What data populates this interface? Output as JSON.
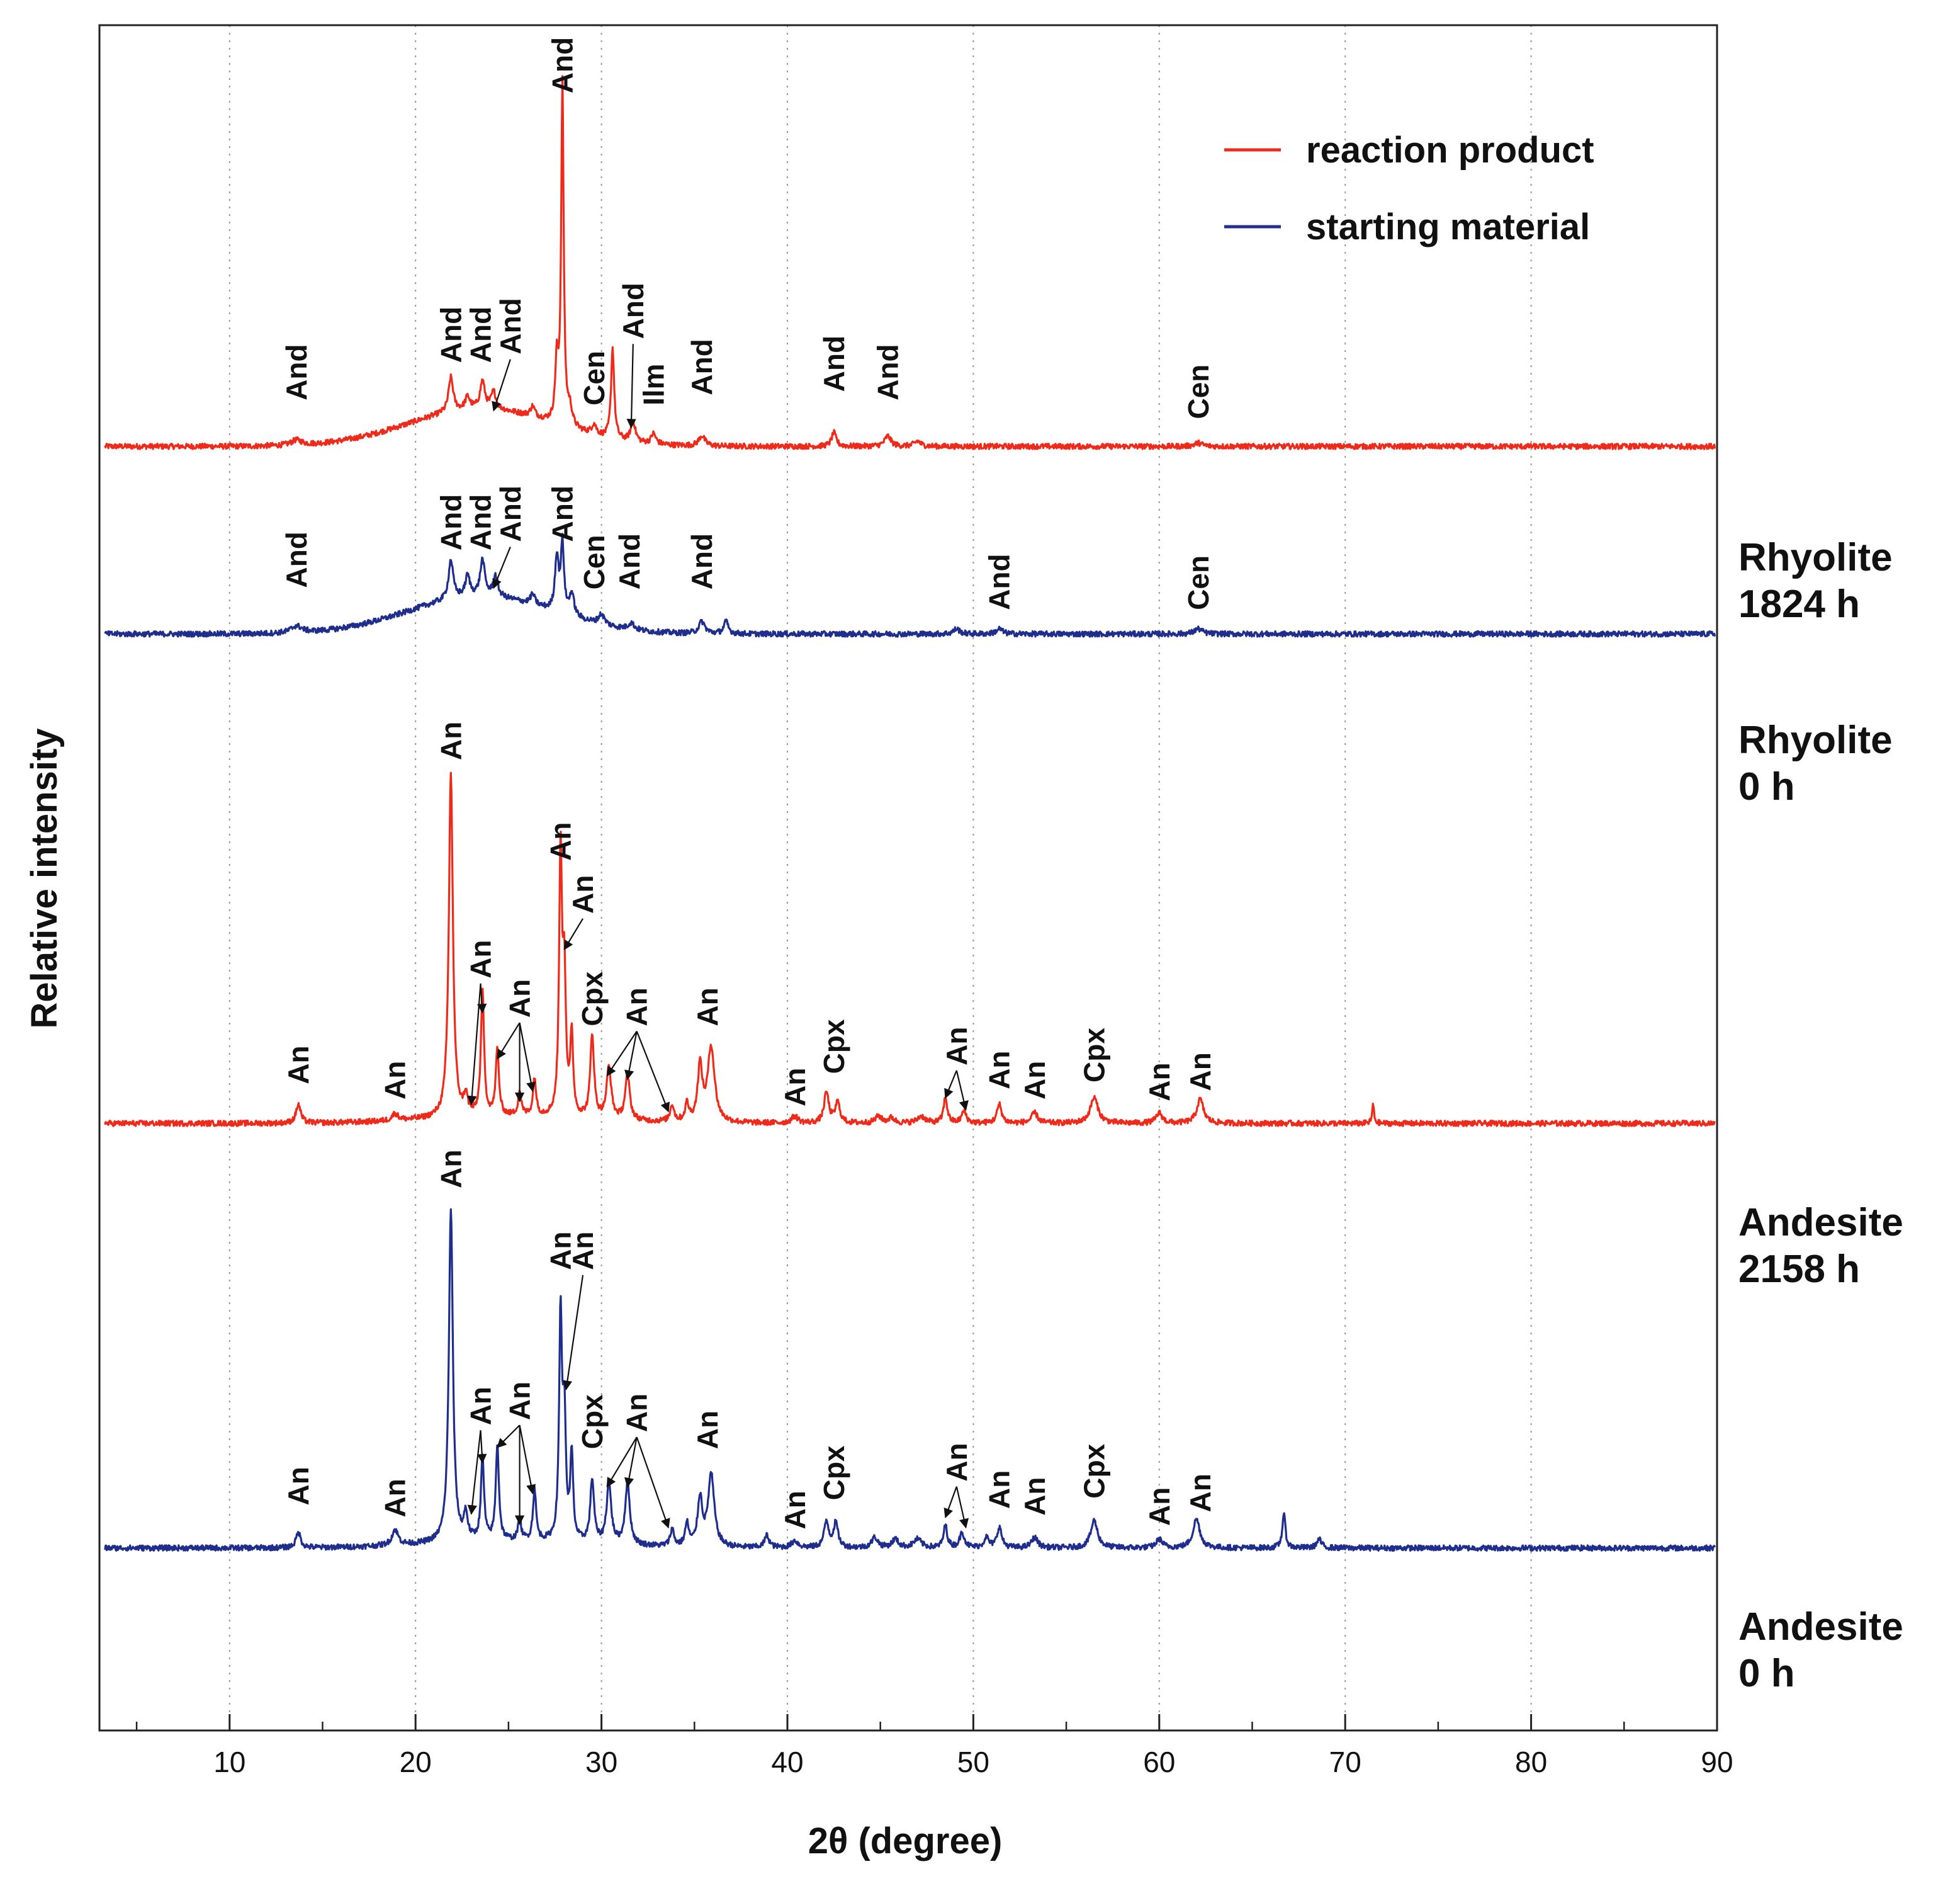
{
  "chart_data": {
    "type": "line",
    "title": "",
    "xlabel": "2θ (degree)",
    "ylabel": "Relative intensity",
    "xlim": [
      3,
      90
    ],
    "ylim": [
      0,
      100
    ],
    "xticks": [
      10,
      20,
      30,
      40,
      50,
      60,
      70,
      80,
      90
    ],
    "xtick_labels": [
      "10",
      "20",
      "30",
      "40",
      "50",
      "60",
      "70",
      "80",
      "90"
    ],
    "x_minor_step": 5,
    "grid": "vertical dotted",
    "legend": {
      "position": "top-right",
      "entries": [
        {
          "label": "reaction product",
          "color": "#ee2a1b"
        },
        {
          "label": "starting material",
          "color": "#1f2d8c"
        }
      ]
    },
    "series": [
      {
        "name": "Rhyolite 1824 h",
        "label_line1": "Rhyolite",
        "label_line2": "1824 h",
        "kind": "reaction product",
        "color": "#ee2a1b",
        "baseline": 75.3,
        "hump": {
          "center": 23.5,
          "width": 5.5,
          "height": 2.2
        },
        "peaks": [
          [
            13.6,
            0.3,
            0.35
          ],
          [
            21.9,
            2.0,
            0.15
          ],
          [
            22.8,
            0.7,
            0.15
          ],
          [
            23.6,
            1.6,
            0.15
          ],
          [
            24.2,
            1.0,
            0.15
          ],
          [
            26.3,
            0.6,
            0.15
          ],
          [
            27.6,
            3.5,
            0.1
          ],
          [
            27.9,
            20.0,
            0.08
          ],
          [
            28.3,
            1.0,
            0.15
          ],
          [
            29.6,
            0.6,
            0.15
          ],
          [
            30.6,
            5.3,
            0.1
          ],
          [
            31.7,
            1.2,
            0.15
          ],
          [
            32.8,
            0.6,
            0.15
          ],
          [
            35.4,
            0.6,
            0.2
          ],
          [
            42.5,
            0.8,
            0.15
          ],
          [
            45.4,
            0.6,
            0.2
          ],
          [
            47.0,
            0.3,
            0.2
          ],
          [
            62.1,
            0.2,
            0.25
          ]
        ],
        "labels": [
          {
            "text": "And",
            "x": 13.6,
            "y": 78.0,
            "arrow": null
          },
          {
            "text": "And",
            "x": 21.9,
            "y": 80.2,
            "arrow": null
          },
          {
            "text": "And",
            "x": 23.5,
            "y": 80.2,
            "arrow": null
          },
          {
            "text": "And",
            "x": 25.1,
            "y": 80.7,
            "arrow": [
              24.2,
              77.4
            ]
          },
          {
            "text": "And",
            "x": 27.9,
            "y": 96.0,
            "arrow": null
          },
          {
            "text": "Cen",
            "x": 29.6,
            "y": 77.7,
            "arrow": null
          },
          {
            "text": "And",
            "x": 31.7,
            "y": 81.6,
            "arrow": [
              31.6,
              76.4
            ]
          },
          {
            "text": "Ilm",
            "x": 32.8,
            "y": 77.7,
            "arrow": null
          },
          {
            "text": "And",
            "x": 35.4,
            "y": 78.3,
            "arrow": null
          },
          {
            "text": "And",
            "x": 42.5,
            "y": 78.5,
            "arrow": null
          },
          {
            "text": "And",
            "x": 45.4,
            "y": 78.0,
            "arrow": null
          },
          {
            "text": "Cen",
            "x": 62.1,
            "y": 76.9,
            "arrow": null
          }
        ]
      },
      {
        "name": "Rhyolite 0 h",
        "label_line1": "Rhyolite",
        "label_line2": "0 h",
        "kind": "starting material",
        "color": "#1f2d8c",
        "baseline": 64.3,
        "hump": {
          "center": 23.5,
          "width": 5.5,
          "height": 2.2
        },
        "peaks": [
          [
            13.6,
            0.4,
            0.35
          ],
          [
            21.9,
            2.3,
            0.15
          ],
          [
            22.8,
            1.2,
            0.15
          ],
          [
            23.6,
            2.1,
            0.15
          ],
          [
            24.3,
            1.2,
            0.15
          ],
          [
            26.3,
            0.6,
            0.15
          ],
          [
            27.6,
            3.2,
            0.12
          ],
          [
            27.9,
            4.0,
            0.1
          ],
          [
            28.4,
            1.3,
            0.15
          ],
          [
            30.0,
            0.6,
            0.2
          ],
          [
            31.6,
            0.4,
            0.2
          ],
          [
            35.4,
            0.7,
            0.2
          ],
          [
            36.7,
            0.7,
            0.15
          ],
          [
            49.1,
            0.3,
            0.2
          ],
          [
            51.4,
            0.3,
            0.2
          ],
          [
            62.1,
            0.3,
            0.25
          ]
        ],
        "labels": [
          {
            "text": "And",
            "x": 13.6,
            "y": 67.0,
            "arrow": null
          },
          {
            "text": "And",
            "x": 21.9,
            "y": 69.2,
            "arrow": null
          },
          {
            "text": "And",
            "x": 23.5,
            "y": 69.2,
            "arrow": null
          },
          {
            "text": "And",
            "x": 25.1,
            "y": 69.7,
            "arrow": [
              24.2,
              67.0
            ]
          },
          {
            "text": "And",
            "x": 27.9,
            "y": 69.7,
            "arrow": null
          },
          {
            "text": "Cen",
            "x": 29.6,
            "y": 66.9,
            "arrow": null
          },
          {
            "text": "And",
            "x": 31.5,
            "y": 66.9,
            "arrow": null
          },
          {
            "text": "And",
            "x": 35.4,
            "y": 66.9,
            "arrow": null
          },
          {
            "text": "And",
            "x": 51.4,
            "y": 65.7,
            "arrow": null
          },
          {
            "text": "Cen",
            "x": 62.1,
            "y": 65.7,
            "arrow": null
          }
        ]
      },
      {
        "name": "Andesite 2158 h",
        "label_line1": "Andesite",
        "label_line2": "2158 h",
        "kind": "reaction product",
        "color": "#ee2a1b",
        "baseline": 35.6,
        "hump": {
          "center": 25.0,
          "width": 6.0,
          "height": 0.4
        },
        "peaks": [
          [
            13.7,
            1.1,
            0.15
          ],
          [
            18.9,
            0.4,
            0.2
          ],
          [
            21.9,
            20.2,
            0.13
          ],
          [
            22.7,
            1.1,
            0.12
          ],
          [
            23.6,
            7.3,
            0.1
          ],
          [
            24.4,
            3.9,
            0.1
          ],
          [
            25.6,
            1.4,
            0.1
          ],
          [
            26.4,
            2.2,
            0.1
          ],
          [
            27.8,
            15.2,
            0.09
          ],
          [
            28.0,
            8.0,
            0.1
          ],
          [
            28.4,
            4.7,
            0.09
          ],
          [
            29.5,
            4.9,
            0.12
          ],
          [
            30.4,
            3.0,
            0.15
          ],
          [
            31.4,
            2.6,
            0.15
          ],
          [
            33.8,
            1.0,
            0.12
          ],
          [
            34.6,
            1.0,
            0.12
          ],
          [
            35.3,
            3.2,
            0.15
          ],
          [
            35.9,
            4.4,
            0.22
          ],
          [
            40.4,
            0.4,
            0.2
          ],
          [
            42.1,
            1.8,
            0.15
          ],
          [
            42.7,
            1.2,
            0.15
          ],
          [
            44.9,
            0.4,
            0.2
          ],
          [
            45.6,
            0.3,
            0.2
          ],
          [
            47.2,
            0.4,
            0.25
          ],
          [
            48.5,
            1.5,
            0.12
          ],
          [
            49.5,
            0.7,
            0.15
          ],
          [
            51.4,
            1.1,
            0.15
          ],
          [
            53.3,
            0.6,
            0.2
          ],
          [
            56.5,
            1.5,
            0.25
          ],
          [
            60.0,
            0.6,
            0.2
          ],
          [
            62.2,
            1.4,
            0.22
          ],
          [
            71.5,
            1.1,
            0.06
          ]
        ],
        "labels": [
          {
            "text": "An",
            "x": 13.7,
            "y": 37.9,
            "arrow": null
          },
          {
            "text": "An",
            "x": 18.9,
            "y": 37.0,
            "arrow": null
          },
          {
            "text": "An",
            "x": 21.9,
            "y": 56.9,
            "arrow": null
          },
          {
            "text": "An",
            "x": 23.5,
            "y": 44.1,
            "arrow": [
              [
                23.0,
                36.7
              ],
              [
                23.6,
                42.1
              ]
            ]
          },
          {
            "text": "An",
            "x": 25.6,
            "y": 41.8,
            "arrow": [
              [
                24.4,
                39.4
              ],
              [
                25.6,
                36.9
              ],
              [
                26.3,
                37.5
              ]
            ]
          },
          {
            "text": "An",
            "x": 27.8,
            "y": 51.0,
            "arrow": null
          },
          {
            "text": "An",
            "x": 29.0,
            "y": 47.9,
            "arrow": [
              28.0,
              45.8
            ]
          },
          {
            "text": "Cpx",
            "x": 29.5,
            "y": 41.3,
            "arrow": null
          },
          {
            "text": "An",
            "x": 31.9,
            "y": 41.3,
            "arrow": [
              [
                30.3,
                38.4
              ],
              [
                31.4,
                38.2
              ],
              [
                33.6,
                36.3
              ]
            ]
          },
          {
            "text": "An",
            "x": 35.7,
            "y": 41.3,
            "arrow": null
          },
          {
            "text": "An",
            "x": 40.4,
            "y": 36.6,
            "arrow": null
          },
          {
            "text": "Cpx",
            "x": 42.5,
            "y": 38.5,
            "arrow": null
          },
          {
            "text": "An",
            "x": 49.1,
            "y": 39.0,
            "arrow": [
              [
                48.5,
                37.1
              ],
              [
                49.6,
                36.4
              ]
            ]
          },
          {
            "text": "An",
            "x": 51.4,
            "y": 37.6,
            "arrow": null
          },
          {
            "text": "An",
            "x": 53.3,
            "y": 37.0,
            "arrow": null
          },
          {
            "text": "Cpx",
            "x": 56.5,
            "y": 38.0,
            "arrow": null
          },
          {
            "text": "An",
            "x": 60.0,
            "y": 36.9,
            "arrow": null
          },
          {
            "text": "An",
            "x": 62.2,
            "y": 37.5,
            "arrow": null
          }
        ]
      },
      {
        "name": "Andesite 0 h",
        "label_line1": "Andesite",
        "label_line2": "0 h",
        "kind": "starting material",
        "color": "#1f2d8c",
        "baseline": 10.7,
        "hump": {
          "center": 25.0,
          "width": 6.0,
          "height": 0.4
        },
        "peaks": [
          [
            13.7,
            0.9,
            0.15
          ],
          [
            18.9,
            0.9,
            0.2
          ],
          [
            21.9,
            19.5,
            0.13
          ],
          [
            22.7,
            1.5,
            0.12
          ],
          [
            23.6,
            4.8,
            0.1
          ],
          [
            24.4,
            5.6,
            0.1
          ],
          [
            25.6,
            1.2,
            0.1
          ],
          [
            26.4,
            3.0,
            0.1
          ],
          [
            27.8,
            13.0,
            0.09
          ],
          [
            28.0,
            7.0,
            0.1
          ],
          [
            28.4,
            5.0,
            0.09
          ],
          [
            29.5,
            3.7,
            0.12
          ],
          [
            30.4,
            3.5,
            0.15
          ],
          [
            31.4,
            3.6,
            0.15
          ],
          [
            33.8,
            1.0,
            0.12
          ],
          [
            34.6,
            1.3,
            0.12
          ],
          [
            35.3,
            2.8,
            0.15
          ],
          [
            35.9,
            4.2,
            0.2
          ],
          [
            38.9,
            0.7,
            0.15
          ],
          [
            40.4,
            0.4,
            0.2
          ],
          [
            42.1,
            1.5,
            0.15
          ],
          [
            42.6,
            1.4,
            0.15
          ],
          [
            44.7,
            0.6,
            0.2
          ],
          [
            45.8,
            0.5,
            0.2
          ],
          [
            47.0,
            0.5,
            0.25
          ],
          [
            48.5,
            1.3,
            0.12
          ],
          [
            49.4,
            0.9,
            0.15
          ],
          [
            50.7,
            0.6,
            0.15
          ],
          [
            51.4,
            1.2,
            0.15
          ],
          [
            53.3,
            0.6,
            0.2
          ],
          [
            56.5,
            1.6,
            0.22
          ],
          [
            60.0,
            0.5,
            0.2
          ],
          [
            62.0,
            1.7,
            0.22
          ],
          [
            66.7,
            2.0,
            0.1
          ],
          [
            68.6,
            0.5,
            0.15
          ]
        ],
        "labels": [
          {
            "text": "An",
            "x": 13.7,
            "y": 13.2,
            "arrow": null
          },
          {
            "text": "An",
            "x": 18.9,
            "y": 12.5,
            "arrow": null
          },
          {
            "text": "An",
            "x": 21.9,
            "y": 31.8,
            "arrow": null
          },
          {
            "text": "An",
            "x": 23.5,
            "y": 17.9,
            "arrow": [
              [
                23.0,
                12.7
              ],
              [
                23.6,
                15.7
              ]
            ]
          },
          {
            "text": "An",
            "x": 25.6,
            "y": 18.2,
            "arrow": [
              [
                24.4,
                16.6
              ],
              [
                25.6,
                12.1
              ],
              [
                26.3,
                13.9
              ]
            ]
          },
          {
            "text": "An",
            "x": 27.8,
            "y": 27.0,
            "arrow": null
          },
          {
            "text": "An",
            "x": 29.0,
            "y": 27.0,
            "arrow": [
              28.1,
              20.0
            ]
          },
          {
            "text": "Cpx",
            "x": 29.5,
            "y": 16.5,
            "arrow": null
          },
          {
            "text": "An",
            "x": 31.9,
            "y": 17.5,
            "arrow": [
              [
                30.3,
                14.3
              ],
              [
                31.4,
                14.3
              ],
              [
                33.6,
                11.9
              ]
            ]
          },
          {
            "text": "An",
            "x": 35.7,
            "y": 16.5,
            "arrow": null
          },
          {
            "text": "An",
            "x": 40.4,
            "y": 11.8,
            "arrow": null
          },
          {
            "text": "Cpx",
            "x": 42.5,
            "y": 13.5,
            "arrow": null
          },
          {
            "text": "An",
            "x": 49.1,
            "y": 14.6,
            "arrow": [
              [
                48.5,
                12.5
              ],
              [
                49.6,
                11.9
              ]
            ]
          },
          {
            "text": "An",
            "x": 51.4,
            "y": 13.0,
            "arrow": null
          },
          {
            "text": "An",
            "x": 53.3,
            "y": 12.6,
            "arrow": null
          },
          {
            "text": "Cpx",
            "x": 56.5,
            "y": 13.6,
            "arrow": null
          },
          {
            "text": "An",
            "x": 60.0,
            "y": 12.0,
            "arrow": null
          },
          {
            "text": "An",
            "x": 62.2,
            "y": 12.8,
            "arrow": null
          }
        ]
      }
    ]
  }
}
